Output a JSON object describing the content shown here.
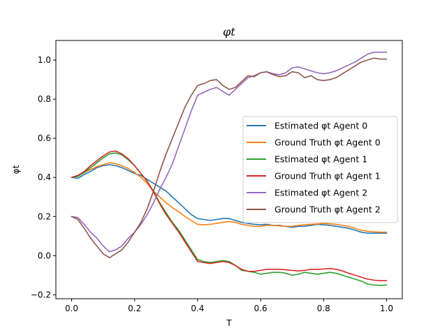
{
  "chart_data": {
    "type": "line",
    "title": "φt",
    "xlabel": "T",
    "ylabel": "φt",
    "xlim": [
      -0.05,
      1.05
    ],
    "ylim": [
      -0.22,
      1.1
    ],
    "xticks": [
      0.0,
      0.2,
      0.4,
      0.6,
      0.8,
      1.0
    ],
    "xtick_labels": [
      "0.0",
      "0.2",
      "0.4",
      "0.6",
      "0.8",
      "1.0"
    ],
    "yticks": [
      -0.2,
      0.0,
      0.2,
      0.4,
      0.6,
      0.8,
      1.0
    ],
    "ytick_labels": [
      "−0.2",
      "0.0",
      "0.2",
      "0.4",
      "0.6",
      "0.8",
      "1.0"
    ],
    "grid": false,
    "legend_position": "center-right",
    "x": [
      0.0,
      0.02,
      0.04,
      0.06,
      0.08,
      0.1,
      0.12,
      0.14,
      0.16,
      0.18,
      0.2,
      0.22,
      0.24,
      0.26,
      0.28,
      0.3,
      0.32,
      0.34,
      0.36,
      0.38,
      0.4,
      0.42,
      0.44,
      0.46,
      0.48,
      0.5,
      0.52,
      0.54,
      0.56,
      0.58,
      0.6,
      0.62,
      0.64,
      0.66,
      0.68,
      0.7,
      0.72,
      0.74,
      0.76,
      0.78,
      0.8,
      0.82,
      0.84,
      0.86,
      0.88,
      0.9,
      0.92,
      0.94,
      0.96,
      0.98,
      1.0
    ],
    "series": [
      {
        "name": "Estimated φt Agent 0",
        "color": "#1f77b4",
        "values": [
          0.4,
          0.395,
          0.415,
          0.43,
          0.45,
          0.46,
          0.465,
          0.46,
          0.45,
          0.435,
          0.42,
          0.41,
          0.39,
          0.37,
          0.35,
          0.33,
          0.3,
          0.27,
          0.24,
          0.21,
          0.19,
          0.185,
          0.18,
          0.185,
          0.19,
          0.19,
          0.18,
          0.17,
          0.165,
          0.16,
          0.158,
          0.16,
          0.155,
          0.155,
          0.15,
          0.145,
          0.15,
          0.15,
          0.155,
          0.16,
          0.158,
          0.155,
          0.15,
          0.145,
          0.14,
          0.13,
          0.12,
          0.115,
          0.115,
          0.115,
          0.115
        ]
      },
      {
        "name": "Ground Truth φt Agent 0",
        "color": "#ff7f0e",
        "values": [
          0.4,
          0.41,
          0.425,
          0.44,
          0.455,
          0.465,
          0.475,
          0.47,
          0.46,
          0.445,
          0.425,
          0.4,
          0.37,
          0.33,
          0.3,
          0.27,
          0.245,
          0.225,
          0.2,
          0.18,
          0.16,
          0.158,
          0.16,
          0.165,
          0.17,
          0.175,
          0.17,
          0.16,
          0.155,
          0.15,
          0.15,
          0.155,
          0.155,
          0.152,
          0.15,
          0.15,
          0.155,
          0.158,
          0.16,
          0.162,
          0.165,
          0.163,
          0.16,
          0.155,
          0.15,
          0.14,
          0.13,
          0.125,
          0.122,
          0.12,
          0.12
        ]
      },
      {
        "name": "Estimated φt Agent 1",
        "color": "#2ca02c",
        "values": [
          0.4,
          0.405,
          0.425,
          0.45,
          0.475,
          0.5,
          0.52,
          0.525,
          0.515,
          0.49,
          0.46,
          0.42,
          0.38,
          0.33,
          0.27,
          0.22,
          0.17,
          0.13,
          0.08,
          0.03,
          -0.02,
          -0.03,
          -0.035,
          -0.03,
          -0.025,
          -0.03,
          -0.05,
          -0.075,
          -0.08,
          -0.085,
          -0.095,
          -0.09,
          -0.085,
          -0.085,
          -0.09,
          -0.1,
          -0.095,
          -0.085,
          -0.09,
          -0.095,
          -0.09,
          -0.085,
          -0.09,
          -0.1,
          -0.11,
          -0.12,
          -0.13,
          -0.145,
          -0.15,
          -0.152,
          -0.15
        ]
      },
      {
        "name": "Ground Truth φt Agent 1",
        "color": "#d62728",
        "values": [
          0.4,
          0.41,
          0.43,
          0.46,
          0.485,
          0.51,
          0.53,
          0.535,
          0.52,
          0.495,
          0.46,
          0.42,
          0.38,
          0.325,
          0.265,
          0.21,
          0.165,
          0.12,
          0.07,
          0.02,
          -0.03,
          -0.035,
          -0.04,
          -0.035,
          -0.03,
          -0.035,
          -0.05,
          -0.07,
          -0.08,
          -0.08,
          -0.075,
          -0.07,
          -0.07,
          -0.07,
          -0.072,
          -0.075,
          -0.078,
          -0.075,
          -0.07,
          -0.07,
          -0.068,
          -0.065,
          -0.07,
          -0.078,
          -0.09,
          -0.1,
          -0.11,
          -0.12,
          -0.125,
          -0.128,
          -0.128
        ]
      },
      {
        "name": "Estimated φt Agent 2",
        "color": "#9467bd",
        "values": [
          0.2,
          0.195,
          0.16,
          0.12,
          0.09,
          0.05,
          0.02,
          0.03,
          0.05,
          0.09,
          0.12,
          0.16,
          0.21,
          0.27,
          0.34,
          0.4,
          0.47,
          0.56,
          0.65,
          0.74,
          0.82,
          0.835,
          0.85,
          0.86,
          0.84,
          0.82,
          0.85,
          0.88,
          0.91,
          0.92,
          0.935,
          0.94,
          0.93,
          0.925,
          0.935,
          0.96,
          0.965,
          0.955,
          0.945,
          0.935,
          0.93,
          0.935,
          0.945,
          0.96,
          0.975,
          0.99,
          1.01,
          1.03,
          1.04,
          1.04,
          1.04
        ]
      },
      {
        "name": "Ground Truth φt Agent 2",
        "color": "#8c564b",
        "values": [
          0.2,
          0.185,
          0.14,
          0.09,
          0.05,
          0.01,
          -0.01,
          0.01,
          0.03,
          0.07,
          0.12,
          0.17,
          0.24,
          0.33,
          0.43,
          0.52,
          0.6,
          0.68,
          0.76,
          0.82,
          0.87,
          0.88,
          0.895,
          0.9,
          0.87,
          0.85,
          0.86,
          0.89,
          0.92,
          0.915,
          0.935,
          0.94,
          0.925,
          0.915,
          0.92,
          0.94,
          0.935,
          0.91,
          0.92,
          0.9,
          0.895,
          0.9,
          0.91,
          0.93,
          0.95,
          0.97,
          0.99,
          1.0,
          1.01,
          1.005,
          1.005
        ]
      }
    ]
  }
}
